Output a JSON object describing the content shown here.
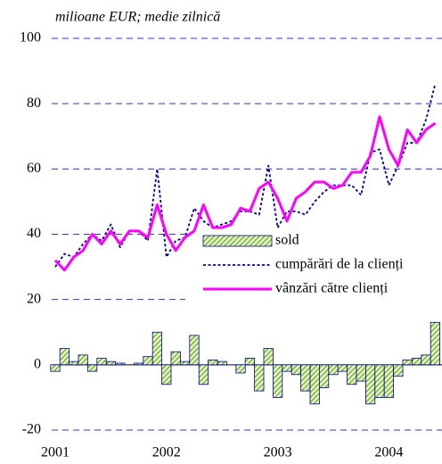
{
  "chart_data": {
    "type": "combo",
    "subtitle": "milioane EUR; medie zilnică",
    "categories": [
      "2001",
      null,
      null,
      null,
      null,
      null,
      null,
      null,
      null,
      null,
      null,
      null,
      "2002",
      null,
      null,
      null,
      null,
      null,
      null,
      null,
      null,
      null,
      null,
      null,
      "2003",
      null,
      null,
      null,
      null,
      null,
      null,
      null,
      null,
      null,
      null,
      null,
      "2004",
      null,
      null,
      null,
      null,
      null
    ],
    "ylim": [
      -20,
      100
    ],
    "yticks": [
      -20,
      0,
      20,
      40,
      60,
      80,
      100
    ],
    "grid": true,
    "series": [
      {
        "name": "sold",
        "type": "bar",
        "color": "#8cc63f",
        "values": [
          -2,
          5,
          1,
          3,
          -2,
          2,
          1,
          0.5,
          0,
          0.5,
          2.5,
          10,
          -6,
          4,
          1,
          9,
          -6,
          1.5,
          1,
          0,
          -2.5,
          2,
          -8,
          5,
          -10,
          -2,
          -3,
          -8,
          -12,
          -7,
          -3,
          -2,
          -6,
          -5,
          -12,
          -10,
          -10,
          -3.5,
          1.5,
          2,
          3,
          13
        ]
      },
      {
        "name": "cumpărări de la clienți",
        "type": "line",
        "line_style": "dotted",
        "color": "#000099",
        "values": [
          30,
          34,
          33,
          37,
          40,
          38,
          43,
          36,
          41,
          41,
          38,
          60,
          33,
          38,
          39,
          48,
          44,
          42,
          43,
          44,
          47,
          47,
          46,
          61,
          42,
          47,
          47,
          46,
          50,
          53,
          55,
          55,
          55,
          52,
          65,
          66,
          55,
          61,
          68,
          68,
          75,
          86
        ]
      },
      {
        "name": "vânzări către clienți",
        "type": "line",
        "line_style": "solid",
        "color": "#ff00ff",
        "values": [
          32,
          29,
          33,
          35,
          40,
          37,
          41,
          37,
          41,
          41,
          39,
          49,
          40,
          35,
          39,
          41,
          49,
          42,
          42,
          43,
          48,
          47,
          54,
          56,
          51,
          44,
          51,
          53,
          56,
          56,
          54,
          55,
          59,
          59,
          64,
          76,
          66,
          61,
          72,
          68,
          72,
          74
        ]
      }
    ]
  }
}
